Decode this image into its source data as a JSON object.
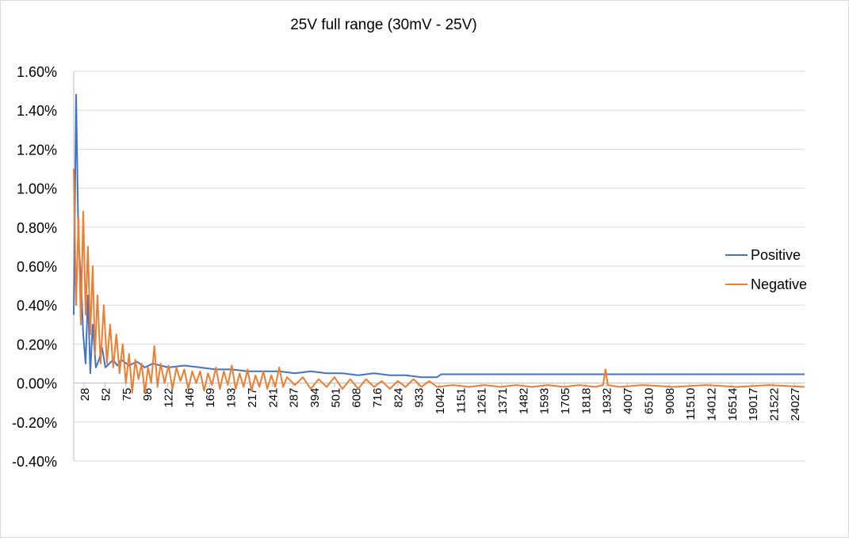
{
  "chart_data": {
    "type": "line",
    "title": "25V full range (30mV - 25V)",
    "xlabel": "",
    "ylabel": "",
    "ylim": [
      -0.004,
      0.016
    ],
    "yticks": [
      -0.004,
      -0.002,
      0,
      0.002,
      0.004,
      0.006,
      0.008,
      0.01,
      0.012,
      0.014,
      0.016
    ],
    "ytick_labels": [
      "-0.40%",
      "-0.20%",
      "0.00%",
      "0.20%",
      "0.40%",
      "0.60%",
      "0.80%",
      "1.00%",
      "1.20%",
      "1.40%",
      "1.60%"
    ],
    "xtick_labels": [
      "28",
      "52",
      "75",
      "98",
      "122",
      "146",
      "169",
      "193",
      "217",
      "241",
      "287",
      "394",
      "501",
      "608",
      "716",
      "824",
      "933",
      "1042",
      "1151",
      "1261",
      "1371",
      "1482",
      "1593",
      "1705",
      "1818",
      "1932",
      "4007",
      "6510",
      "9008",
      "11510",
      "14012",
      "16514",
      "19017",
      "21522",
      "24027"
    ],
    "grid": true,
    "legend": "right",
    "colors": {
      "positive": "#4472c4",
      "negative": "#ed7d31",
      "grid": "#d9d9d9",
      "axis": "#bfbfbf"
    },
    "series": [
      {
        "name": "Positive",
        "points": [
          [
            0,
            0.0035
          ],
          [
            3,
            0.0148
          ],
          [
            6,
            0.0072
          ],
          [
            9,
            0.0055
          ],
          [
            12,
            0.0025
          ],
          [
            15,
            0.001
          ],
          [
            18,
            0.0045
          ],
          [
            21,
            0.0005
          ],
          [
            24,
            0.003
          ],
          [
            28,
            0.0008
          ],
          [
            32,
            0.0012
          ],
          [
            36,
            0.0018
          ],
          [
            40,
            0.0008
          ],
          [
            45,
            0.001
          ],
          [
            50,
            0.0012
          ],
          [
            55,
            0.0009
          ],
          [
            60,
            0.0012
          ],
          [
            70,
            0.0009
          ],
          [
            80,
            0.0011
          ],
          [
            90,
            0.0008
          ],
          [
            100,
            0.001
          ],
          [
            120,
            0.0008
          ],
          [
            140,
            0.0009
          ],
          [
            160,
            0.0008
          ],
          [
            180,
            0.0007
          ],
          [
            200,
            0.0007
          ],
          [
            220,
            0.0006
          ],
          [
            240,
            0.0006
          ],
          [
            260,
            0.0006
          ],
          [
            280,
            0.0005
          ],
          [
            300,
            0.0006
          ],
          [
            320,
            0.0005
          ],
          [
            340,
            0.0005
          ],
          [
            360,
            0.0004
          ],
          [
            380,
            0.0005
          ],
          [
            400,
            0.0004
          ],
          [
            420,
            0.0004
          ],
          [
            440,
            0.0003
          ],
          [
            460,
            0.0003
          ],
          [
            465,
            0.00045
          ],
          [
            925,
            0.00045
          ]
        ]
      },
      {
        "name": "Negative",
        "points": [
          [
            0,
            0.011
          ],
          [
            3,
            0.004
          ],
          [
            6,
            0.0085
          ],
          [
            9,
            0.003
          ],
          [
            12,
            0.0088
          ],
          [
            15,
            0.0035
          ],
          [
            18,
            0.007
          ],
          [
            21,
            0.0025
          ],
          [
            24,
            0.006
          ],
          [
            27,
            0.0015
          ],
          [
            30,
            0.0045
          ],
          [
            34,
            0.001
          ],
          [
            38,
            0.004
          ],
          [
            42,
            0.001
          ],
          [
            46,
            0.003
          ],
          [
            50,
            0.0008
          ],
          [
            54,
            0.0025
          ],
          [
            58,
            0.0005
          ],
          [
            62,
            0.002
          ],
          [
            66,
            0.0
          ],
          [
            70,
            0.0015
          ],
          [
            74,
            -0.0005
          ],
          [
            78,
            0.0012
          ],
          [
            82,
            0.0002
          ],
          [
            86,
            0.001
          ],
          [
            90,
            -0.0005
          ],
          [
            94,
            0.0008
          ],
          [
            98,
            0.0
          ],
          [
            102,
            0.0019
          ],
          [
            106,
            -0.0002
          ],
          [
            110,
            0.001
          ],
          [
            115,
            0.0
          ],
          [
            120,
            0.0009
          ],
          [
            125,
            -0.0003
          ],
          [
            130,
            0.0008
          ],
          [
            135,
            0.0001
          ],
          [
            140,
            0.0007
          ],
          [
            145,
            -0.0003
          ],
          [
            150,
            0.0006
          ],
          [
            155,
            0.0
          ],
          [
            160,
            0.0006
          ],
          [
            165,
            -0.0004
          ],
          [
            170,
            0.0005
          ],
          [
            175,
            -0.0001
          ],
          [
            180,
            0.0008
          ],
          [
            185,
            -0.0003
          ],
          [
            190,
            0.0006
          ],
          [
            195,
            -0.0001
          ],
          [
            200,
            0.0009
          ],
          [
            205,
            -0.0003
          ],
          [
            210,
            0.0005
          ],
          [
            215,
            -0.0002
          ],
          [
            220,
            0.0007
          ],
          [
            225,
            -0.0004
          ],
          [
            230,
            0.0004
          ],
          [
            235,
            -0.0002
          ],
          [
            240,
            0.0006
          ],
          [
            245,
            -0.0003
          ],
          [
            250,
            0.0004
          ],
          [
            255,
            -0.0002
          ],
          [
            260,
            0.0008
          ],
          [
            265,
            -0.0002
          ],
          [
            270,
            0.0003
          ],
          [
            280,
            -0.0001
          ],
          [
            290,
            0.0003
          ],
          [
            300,
            -0.0003
          ],
          [
            310,
            0.0002
          ],
          [
            320,
            -0.0002
          ],
          [
            330,
            0.0003
          ],
          [
            340,
            -0.0003
          ],
          [
            350,
            0.0002
          ],
          [
            360,
            -0.0003
          ],
          [
            370,
            0.0002
          ],
          [
            380,
            -0.0002
          ],
          [
            390,
            0.0001
          ],
          [
            400,
            -0.0003
          ],
          [
            410,
            0.0001
          ],
          [
            420,
            -0.0002
          ],
          [
            430,
            0.0002
          ],
          [
            440,
            -0.0002
          ],
          [
            450,
            0.0001
          ],
          [
            460,
            -0.0002
          ],
          [
            480,
            -0.0001
          ],
          [
            500,
            -0.0002
          ],
          [
            520,
            -0.0001
          ],
          [
            540,
            -0.0002
          ],
          [
            560,
            -0.0001
          ],
          [
            580,
            -0.0002
          ],
          [
            600,
            -0.0001
          ],
          [
            620,
            -0.0002
          ],
          [
            640,
            -0.0001
          ],
          [
            660,
            -0.0002
          ],
          [
            670,
            -0.0001
          ],
          [
            673,
            0.0007
          ],
          [
            676,
            -0.0001
          ],
          [
            690,
            -0.0002
          ],
          [
            720,
            -0.0001
          ],
          [
            760,
            -0.0002
          ],
          [
            800,
            -0.0001
          ],
          [
            840,
            -0.0002
          ],
          [
            880,
            -0.0001
          ],
          [
            925,
            -0.0002
          ]
        ]
      }
    ]
  }
}
